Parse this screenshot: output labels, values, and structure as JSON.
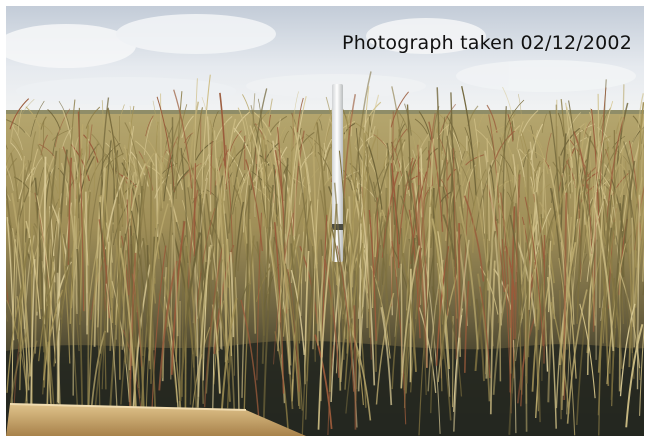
{
  "photo": {
    "caption": "Photograph taken 02/12/2002",
    "subject": "sawgrass marsh with white survey pole",
    "colors": {
      "sky_top": "#c9d3df",
      "sky_bottom": "#eef2f6",
      "grass_light": "#b3a36a",
      "grass_mid": "#8a7d4c",
      "grass_dark": "#3c3a26",
      "water": "#1f2320",
      "pole": "#f2f2f0",
      "board": "#c9a46a"
    }
  }
}
